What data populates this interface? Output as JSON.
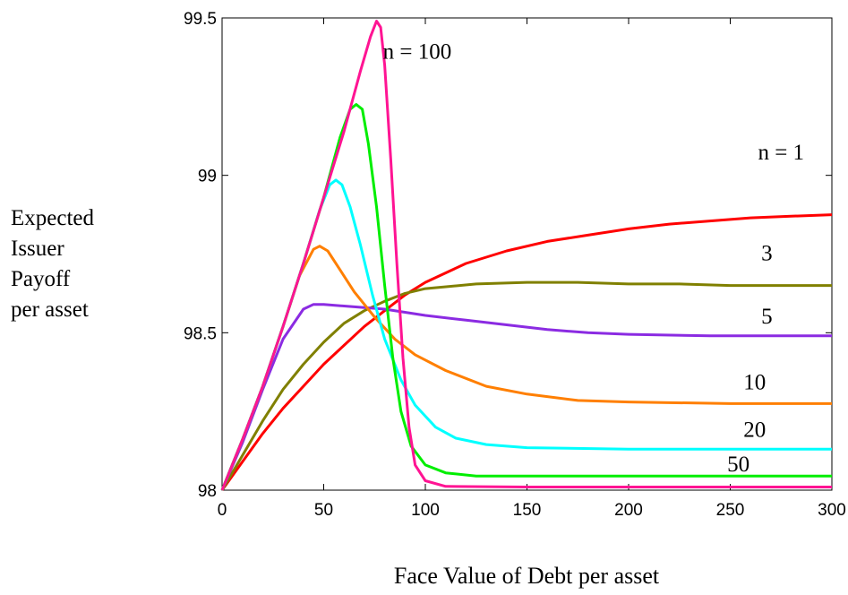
{
  "chart_data": {
    "type": "line",
    "xlabel": "Face Value of Debt per asset",
    "ylabel_lines": [
      "Expected",
      "Issuer",
      "Payoff",
      "per asset"
    ],
    "xlim": [
      0,
      300
    ],
    "ylim": [
      98,
      99.5
    ],
    "xticks": [
      0,
      50,
      100,
      150,
      200,
      250,
      300
    ],
    "yticks": [
      98,
      98.5,
      99,
      99.5
    ],
    "xtick_labels": [
      "0",
      "50",
      "100",
      "150",
      "200",
      "250",
      "300"
    ],
    "ytick_labels": [
      "98",
      "98.5",
      "99",
      "99.5"
    ],
    "grid": false,
    "series": [
      {
        "name": "n = 1",
        "color": "#ff0000",
        "points": [
          [
            0,
            98
          ],
          [
            10,
            98.09
          ],
          [
            20,
            98.18
          ],
          [
            30,
            98.26
          ],
          [
            40,
            98.33
          ],
          [
            50,
            98.4
          ],
          [
            60,
            98.46
          ],
          [
            70,
            98.52
          ],
          [
            80,
            98.57
          ],
          [
            90,
            98.62
          ],
          [
            100,
            98.66
          ],
          [
            120,
            98.72
          ],
          [
            140,
            98.76
          ],
          [
            160,
            98.79
          ],
          [
            180,
            98.81
          ],
          [
            200,
            98.83
          ],
          [
            220,
            98.845
          ],
          [
            240,
            98.855
          ],
          [
            260,
            98.865
          ],
          [
            280,
            98.87
          ],
          [
            300,
            98.875
          ]
        ]
      },
      {
        "name": "3",
        "color": "#808000",
        "points": [
          [
            0,
            98
          ],
          [
            10,
            98.11
          ],
          [
            20,
            98.22
          ],
          [
            30,
            98.32
          ],
          [
            40,
            98.4
          ],
          [
            50,
            98.47
          ],
          [
            60,
            98.53
          ],
          [
            70,
            98.57
          ],
          [
            80,
            98.6
          ],
          [
            90,
            98.625
          ],
          [
            100,
            98.64
          ],
          [
            125,
            98.655
          ],
          [
            150,
            98.66
          ],
          [
            175,
            98.66
          ],
          [
            200,
            98.655
          ],
          [
            225,
            98.655
          ],
          [
            250,
            98.65
          ],
          [
            275,
            98.65
          ],
          [
            300,
            98.65
          ]
        ]
      },
      {
        "name": "5",
        "color": "#8b2be2",
        "points": [
          [
            0,
            98
          ],
          [
            10,
            98.15
          ],
          [
            20,
            98.32
          ],
          [
            30,
            98.48
          ],
          [
            40,
            98.575
          ],
          [
            45,
            98.59
          ],
          [
            50,
            98.59
          ],
          [
            60,
            98.585
          ],
          [
            70,
            98.58
          ],
          [
            80,
            98.575
          ],
          [
            90,
            98.565
          ],
          [
            100,
            98.555
          ],
          [
            120,
            98.54
          ],
          [
            140,
            98.525
          ],
          [
            160,
            98.51
          ],
          [
            180,
            98.5
          ],
          [
            200,
            98.495
          ],
          [
            240,
            98.49
          ],
          [
            300,
            98.49
          ]
        ]
      },
      {
        "name": "10",
        "color": "#ff7f00",
        "points": [
          [
            0,
            98
          ],
          [
            10,
            98.16
          ],
          [
            20,
            98.33
          ],
          [
            30,
            98.52
          ],
          [
            38,
            98.68
          ],
          [
            45,
            98.765
          ],
          [
            48,
            98.775
          ],
          [
            52,
            98.76
          ],
          [
            58,
            98.7
          ],
          [
            65,
            98.63
          ],
          [
            75,
            98.55
          ],
          [
            85,
            98.48
          ],
          [
            95,
            98.43
          ],
          [
            110,
            98.38
          ],
          [
            130,
            98.33
          ],
          [
            150,
            98.305
          ],
          [
            175,
            98.285
          ],
          [
            200,
            98.28
          ],
          [
            250,
            98.275
          ],
          [
            300,
            98.275
          ]
        ]
      },
      {
        "name": "20",
        "color": "#00ffff",
        "points": [
          [
            0,
            98
          ],
          [
            10,
            98.16
          ],
          [
            20,
            98.33
          ],
          [
            30,
            98.52
          ],
          [
            40,
            98.72
          ],
          [
            48,
            98.89
          ],
          [
            53,
            98.97
          ],
          [
            56,
            98.985
          ],
          [
            59,
            98.97
          ],
          [
            63,
            98.9
          ],
          [
            68,
            98.78
          ],
          [
            74,
            98.62
          ],
          [
            80,
            98.48
          ],
          [
            88,
            98.35
          ],
          [
            95,
            98.27
          ],
          [
            105,
            98.2
          ],
          [
            115,
            98.165
          ],
          [
            130,
            98.145
          ],
          [
            150,
            98.135
          ],
          [
            200,
            98.13
          ],
          [
            300,
            98.13
          ]
        ]
      },
      {
        "name": "50",
        "color": "#00ee00",
        "points": [
          [
            0,
            98
          ],
          [
            10,
            98.16
          ],
          [
            20,
            98.33
          ],
          [
            30,
            98.52
          ],
          [
            40,
            98.72
          ],
          [
            50,
            98.93
          ],
          [
            58,
            99.12
          ],
          [
            63,
            99.21
          ],
          [
            66,
            99.225
          ],
          [
            69,
            99.21
          ],
          [
            72,
            99.1
          ],
          [
            76,
            98.9
          ],
          [
            80,
            98.65
          ],
          [
            84,
            98.42
          ],
          [
            88,
            98.25
          ],
          [
            93,
            98.14
          ],
          [
            100,
            98.08
          ],
          [
            110,
            98.055
          ],
          [
            125,
            98.045
          ],
          [
            150,
            98.045
          ],
          [
            300,
            98.045
          ]
        ]
      },
      {
        "name": "n = 100",
        "color": "#ff1493",
        "points": [
          [
            0,
            98
          ],
          [
            10,
            98.16
          ],
          [
            20,
            98.33
          ],
          [
            30,
            98.52
          ],
          [
            40,
            98.72
          ],
          [
            50,
            98.93
          ],
          [
            60,
            99.14
          ],
          [
            68,
            99.33
          ],
          [
            73,
            99.44
          ],
          [
            76,
            99.49
          ],
          [
            78,
            99.47
          ],
          [
            80,
            99.35
          ],
          [
            83,
            99.05
          ],
          [
            86,
            98.72
          ],
          [
            89,
            98.42
          ],
          [
            92,
            98.2
          ],
          [
            95,
            98.08
          ],
          [
            100,
            98.03
          ],
          [
            110,
            98.012
          ],
          [
            150,
            98.01
          ],
          [
            300,
            98.01
          ]
        ]
      }
    ],
    "series_label_positions": {
      "n = 1": [
        275,
        99.05
      ],
      "3": [
        268,
        98.73
      ],
      "5": [
        268,
        98.53
      ],
      "10": [
        262,
        98.32
      ],
      "20": [
        262,
        98.17
      ],
      "50": [
        254,
        98.06
      ],
      "n = 100": [
        96,
        99.37
      ]
    }
  }
}
